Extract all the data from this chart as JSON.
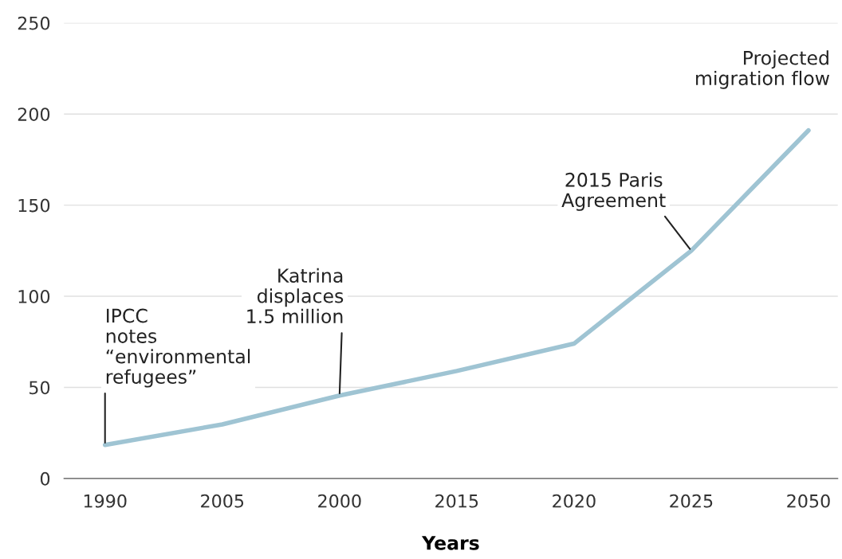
{
  "chart_data": {
    "type": "line",
    "xlabel": "Years",
    "categories": [
      "1990",
      "2005",
      "2000",
      "2015",
      "2020",
      "2025",
      "2050"
    ],
    "series": [
      {
        "color": "#9fc4d3",
        "values": [
          18.4,
          29.7,
          45.5,
          59,
          74,
          125,
          191
        ]
      }
    ],
    "ylim": [
      0,
      250
    ],
    "yticks": [
      0,
      50,
      100,
      150,
      200,
      250
    ],
    "grid": "y",
    "marker": "none",
    "line_style": "solid",
    "annotations": [
      {
        "text": "IPCC\nnotes\n“environmental\nrefugees”",
        "x": "1990",
        "y": 18.4
      },
      {
        "text": "Katrina\ndisplaces\n1.5 million",
        "x": "2000",
        "y": 45.5
      },
      {
        "text": "2015 Paris\nAgreement",
        "x": "2025",
        "y": 125
      },
      "Projected\nmigration flow"
    ]
  }
}
